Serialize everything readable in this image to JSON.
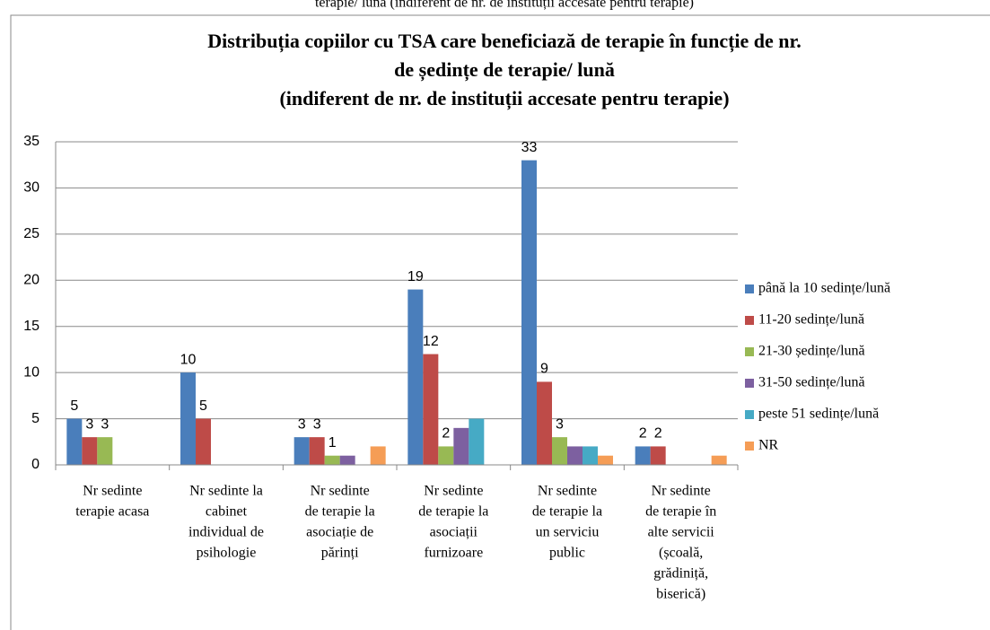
{
  "chart_data": {
    "type": "bar",
    "caption": "terapie/ lună (indiferent de nr. de instituții accesate pentru terapie)",
    "title": [
      "Distribuția copiilor cu TSA care beneficiază de terapie în funcție de nr.",
      "de ședințe de terapie/ lună",
      "(indiferent de nr. de instituții accesate pentru terapie)"
    ],
    "categories": [
      [
        "Nr sedinte",
        "terapie acasa"
      ],
      [
        "Nr sedinte la",
        "cabinet",
        "individual de",
        "psihologie"
      ],
      [
        "Nr sedinte",
        "de terapie la",
        "asociație de",
        "părinți"
      ],
      [
        "Nr sedinte",
        "de terapie la",
        "asociații",
        "furnizoare"
      ],
      [
        "Nr sedinte",
        "de terapie la",
        "un serviciu",
        "public"
      ],
      [
        "Nr sedinte",
        "de terapie în",
        "alte servicii",
        "(școală,",
        "grădiniță,",
        "biserică)"
      ]
    ],
    "series": [
      {
        "name": "până la 10 sedințe/lună",
        "color": "#4a7ebb",
        "values": [
          5,
          10,
          3,
          19,
          33,
          2
        ],
        "value_labels": [
          "5",
          "10",
          "3",
          "19",
          "33",
          "2"
        ]
      },
      {
        "name": "11-20 sedințe/lună",
        "color": "#be4b48",
        "values": [
          3,
          5,
          3,
          12,
          9,
          2
        ],
        "value_labels": [
          "3",
          "5",
          "3",
          "12",
          "9",
          "2"
        ]
      },
      {
        "name": "21-30 ședințe/lună",
        "color": "#98b954",
        "values": [
          3,
          null,
          1,
          2,
          3,
          null
        ],
        "value_labels": [
          "3",
          null,
          "1",
          "2",
          "3",
          null
        ]
      },
      {
        "name": "31-50 sedințe/lună",
        "color": "#7d60a0",
        "values": [
          null,
          null,
          1,
          4,
          2,
          null
        ],
        "value_labels": [
          null,
          null,
          null,
          null,
          null,
          null
        ]
      },
      {
        "name": "peste 51 sedințe/lună",
        "color": "#46aac5",
        "values": [
          null,
          null,
          null,
          5,
          2,
          null
        ],
        "value_labels": [
          null,
          null,
          null,
          null,
          null,
          null
        ]
      },
      {
        "name": "NR",
        "color": "#f59d56",
        "values": [
          null,
          null,
          2,
          null,
          1,
          1
        ],
        "value_labels": [
          null,
          null,
          null,
          null,
          null,
          null
        ]
      }
    ],
    "ylim": [
      0,
      35
    ],
    "yticks": [
      0,
      5,
      10,
      15,
      20,
      25,
      30,
      35
    ],
    "grid": true,
    "legend": "right"
  }
}
